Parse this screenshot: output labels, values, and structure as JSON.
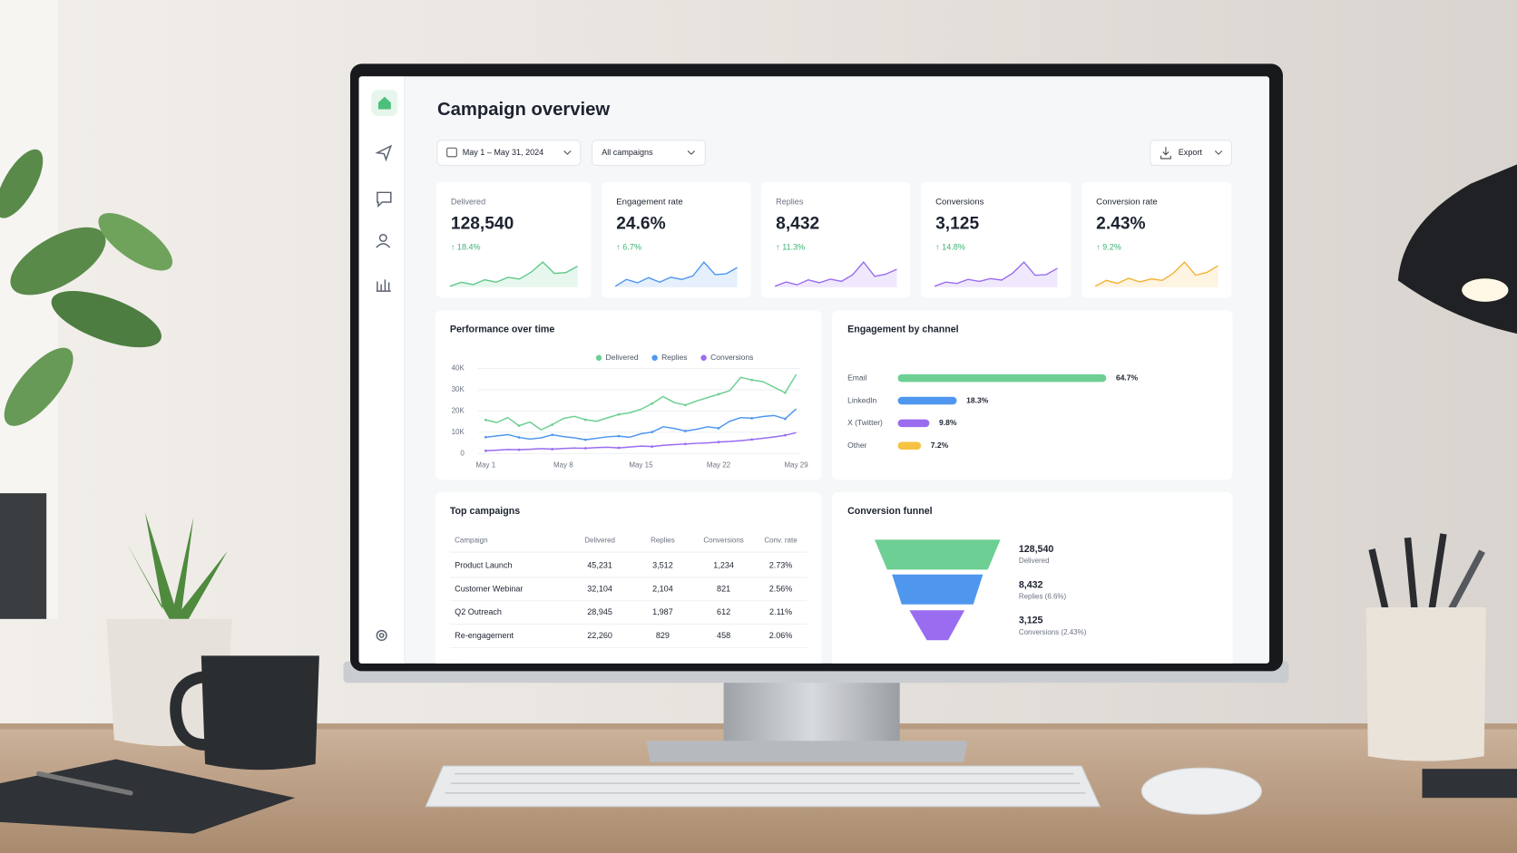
{
  "header": {
    "title": "Campaign overview",
    "date_range": "May 1 – May 31, 2024",
    "campaign_filter": "All campaigns",
    "export": "Export"
  },
  "kpis": [
    {
      "label": "Delivered",
      "value": "128,540",
      "change": "↑ 18.4%",
      "color": "#5fc98c",
      "trend": [
        3,
        4,
        3.4,
        4.6,
        4,
        5.2,
        4.8,
        6.5,
        9,
        6.2,
        6.4,
        8
      ]
    },
    {
      "label": "Engagement rate",
      "value": "24.6%",
      "change": "↑ 6.7%",
      "color": "#4f97ee",
      "trend": [
        3,
        5,
        4,
        5.5,
        4.2,
        5.6,
        5,
        6,
        10,
        6.4,
        6.6,
        8.4
      ]
    },
    {
      "label": "Replies",
      "value": "8,432",
      "change": "↑ 11.3%",
      "color": "#9a6cf0",
      "trend": [
        3.2,
        4.4,
        3.6,
        5,
        4.2,
        5.2,
        4.6,
        6.4,
        10,
        6,
        6.6,
        8
      ]
    },
    {
      "label": "Conversions",
      "value": "3,125",
      "change": "↑ 14.8%",
      "color": "#9a6cf0",
      "trend": [
        3,
        4.2,
        3.8,
        5,
        4.4,
        5.2,
        4.8,
        6.8,
        10,
        6.2,
        6.4,
        8.2
      ]
    },
    {
      "label": "Conversion rate",
      "value": "2.43%",
      "change": "↑ 9.2%",
      "color": "#f2b233",
      "trend": [
        3,
        4.6,
        3.8,
        5.2,
        4.2,
        5,
        4.6,
        6.6,
        9.6,
        6,
        6.8,
        8.6
      ]
    }
  ],
  "chart_data": [
    {
      "type": "line",
      "title": "Performance over time",
      "categories": [
        "May 1",
        null,
        null,
        null,
        null,
        null,
        null,
        "May 8",
        null,
        null,
        null,
        null,
        null,
        null,
        "May 15",
        null,
        null,
        null,
        null,
        null,
        null,
        "May 22",
        null,
        null,
        null,
        null,
        null,
        null,
        "May 29"
      ],
      "series": [
        {
          "name": "Delivered",
          "color": "#6dcf93",
          "values": [
            15800,
            14600,
            16900,
            13100,
            14800,
            11200,
            13600,
            16500,
            17500,
            15900,
            15200,
            16800,
            18400,
            19200,
            20800,
            23500,
            26800,
            24000,
            22800,
            24700,
            26300,
            27900,
            29600,
            35800,
            34600,
            33800,
            31200,
            28600,
            37200
          ]
        },
        {
          "name": "Replies",
          "color": "#4f97ee",
          "values": [
            7700,
            8300,
            8900,
            7600,
            6800,
            7400,
            8800,
            8000,
            7400,
            6500,
            7200,
            7900,
            8200,
            7700,
            9300,
            10100,
            12600,
            11800,
            10600,
            11400,
            12600,
            11900,
            15200,
            16900,
            16600,
            17400,
            17900,
            16300,
            21000
          ]
        },
        {
          "name": "Conversions",
          "color": "#9a6cf0",
          "values": [
            1300,
            1600,
            1900,
            1800,
            2000,
            2300,
            2100,
            2400,
            2600,
            2500,
            2800,
            3000,
            2700,
            3100,
            3500,
            3300,
            3900,
            4200,
            4500,
            4800,
            5000,
            5400,
            5700,
            6100,
            6600,
            7200,
            7800,
            8600,
            9800
          ]
        }
      ],
      "ylim": [
        0,
        40000
      ],
      "yticks": [
        0,
        {
          "value": 10000,
          "label": "10K"
        },
        {
          "value": 20000,
          "label": "20K"
        },
        {
          "value": 30000,
          "label": "30K"
        },
        {
          "value": 40000,
          "label": "40K"
        }
      ],
      "grid": true,
      "legend": "top"
    },
    {
      "type": "hbar",
      "title": "Engagement by channel",
      "categories": [
        "Email",
        "LinkedIn",
        "X (Twitter)",
        "Other"
      ],
      "values": [
        64.7,
        18.3,
        9.8,
        7.2
      ],
      "value_labels": [
        "64.7%",
        "18.3%",
        "9.8%",
        "7.2%"
      ],
      "colors": [
        "#6dcf93",
        "#4f97ee",
        "#9a6cf0",
        "#f5c242"
      ]
    },
    {
      "type": "funnel",
      "title": "Conversion funnel",
      "values": [
        128540,
        8432,
        3125
      ],
      "value_labels": [
        "128,540",
        "8,432",
        "3,125"
      ],
      "labels": [
        "Delivered",
        "Replies (6.6%)",
        "Conversions (2.43%)"
      ],
      "colors": [
        "#6dcf93",
        "#4f97ee",
        "#9a6cf0"
      ]
    }
  ],
  "table": {
    "title": "Top campaigns",
    "columns": [
      "Campaign",
      "Delivered",
      "Replies",
      "Conversions",
      "Conv. rate"
    ],
    "rows": [
      [
        "Product Launch",
        "45,231",
        "3,512",
        "1,234",
        "2.73%"
      ],
      [
        "Customer Webinar",
        "32,104",
        "2,104",
        "821",
        "2.56%"
      ],
      [
        "Q2 Outreach",
        "28,945",
        "1,987",
        "612",
        "2.11%"
      ],
      [
        "Re-engagement",
        "22,260",
        "829",
        "458",
        "2.06%"
      ]
    ]
  }
}
